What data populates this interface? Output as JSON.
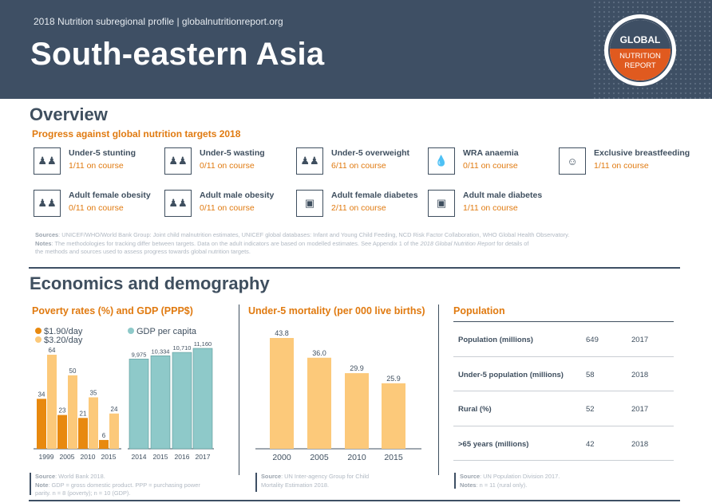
{
  "header": {
    "subtitle": "2018 Nutrition subregional profile | globalnutritionreport.org",
    "title": "South-eastern Asia",
    "logo_top": "GLOBAL",
    "logo_bottom_1": "NUTRITION",
    "logo_bottom_2": "REPORT",
    "colors": {
      "header_bg": "#3e4f64",
      "accent_orange": "#e07a10",
      "logo_orange": "#e05a1f"
    }
  },
  "overview": {
    "title": "Overview",
    "progress_title": "Progress against global nutrition targets 2018",
    "targets": [
      {
        "name": "Under-5 stunting",
        "status": "1/11 on course",
        "icon": "children-icon"
      },
      {
        "name": "Under-5 wasting",
        "status": "0/11 on course",
        "icon": "children-icon"
      },
      {
        "name": "Under-5 overweight",
        "status": "6/11 on course",
        "icon": "children-icon"
      },
      {
        "name": "WRA anaemia",
        "status": "0/11 on course",
        "icon": "blood-drop-icon"
      },
      {
        "name": "Exclusive breastfeeding",
        "status": "1/11 on course",
        "icon": "breastfeeding-icon"
      },
      {
        "name": "Adult female obesity",
        "status": "0/11 on course",
        "icon": "adults-icon"
      },
      {
        "name": "Adult male obesity",
        "status": "0/11 on course",
        "icon": "adults-icon"
      },
      {
        "name": "Adult female diabetes",
        "status": "2/11 on course",
        "icon": "glucose-meter-icon"
      },
      {
        "name": "Adult male diabetes",
        "status": "1/11 on course",
        "icon": "glucose-meter-icon"
      }
    ],
    "sources_label": "Sources",
    "sources_text": ": UNICEF/WHO/World Bank Group: Joint child malnutrition estimates, UNICEF global databases: Infant and Young Child Feeding, NCD Risk Factor Collaboration, WHO Global Health Observatory.",
    "notes_label": "Notes",
    "notes_text": ": The methodologies for tracking differ between targets. Data on the adult indicators are based on modelled estimates. See Appendix 1 of the ",
    "notes_report": "2018 Global Nutrition Report",
    "notes_text_2": " for details of",
    "notes_text_3": "the methods and sources used to assess progress towards global nutrition targets."
  },
  "economics": {
    "title": "Economics and demography",
    "poverty": {
      "title": "Poverty rates (%) and GDP (PPP$)",
      "legend_190": "$1.90/day",
      "legend_320": "$3.20/day",
      "legend_gdp": "GDP per capita",
      "source_label": "Source",
      "source_text": ": World Bank 2018.",
      "note_label": "Note",
      "note_text": ": GDP = gross domestic product. PPP = purchasing power",
      "note_text_2": "parity. n = 8 (poverty); n = 10 (GDP)."
    },
    "mortality": {
      "title": "Under-5 mortality (per 000 live births)",
      "source_label": "Source",
      "source_text": ": UN Inter-agency Group for Child",
      "source_text_2": "Mortality Estimation 2018."
    },
    "population": {
      "title": "Population",
      "rows": [
        {
          "label": "Population (millions)",
          "value": "649",
          "year": "2017"
        },
        {
          "label": "Under-5 population (millions)",
          "value": "58",
          "year": "2018"
        },
        {
          "label": "Rural (%)",
          "value": "52",
          "year": "2017"
        },
        {
          "label": ">65 years (millions)",
          "value": "42",
          "year": "2018"
        }
      ],
      "source_label": "Source",
      "source_text": ": UN Population Division 2017.",
      "note_label": "Notes",
      "note_text": ": n = 11 (rural only)."
    }
  },
  "chart_data": [
    {
      "type": "bar",
      "title": "Poverty rates (%)",
      "categories": [
        "1999",
        "2005",
        "2010",
        "2015"
      ],
      "series": [
        {
          "name": "$1.90/day",
          "values": [
            34,
            23,
            21,
            6
          ],
          "color": "#e8890f"
        },
        {
          "name": "$3.20/day",
          "values": [
            64,
            50,
            35,
            24
          ],
          "color": "#fcc97a"
        }
      ],
      "ylim": [
        0,
        70
      ]
    },
    {
      "type": "bar",
      "title": "GDP per capita",
      "categories": [
        "2014",
        "2015",
        "2016",
        "2017"
      ],
      "series": [
        {
          "name": "GDP per capita",
          "values": [
            9975,
            10334,
            10710,
            11160
          ],
          "labels": [
            "9,975",
            "10,334",
            "10,710",
            "11,160"
          ],
          "color": "#8ec9c9"
        }
      ],
      "ylim": [
        0,
        11700
      ]
    },
    {
      "type": "bar",
      "title": "Under-5 mortality (per 000 live births)",
      "categories": [
        "2000",
        "2005",
        "2010",
        "2015"
      ],
      "values": [
        43.8,
        36.0,
        29.9,
        25.9
      ],
      "labels": [
        "43.8",
        "36.0",
        "29.9",
        "25.9"
      ],
      "color": "#fcc97a",
      "ylim": [
        0,
        46
      ]
    }
  ]
}
